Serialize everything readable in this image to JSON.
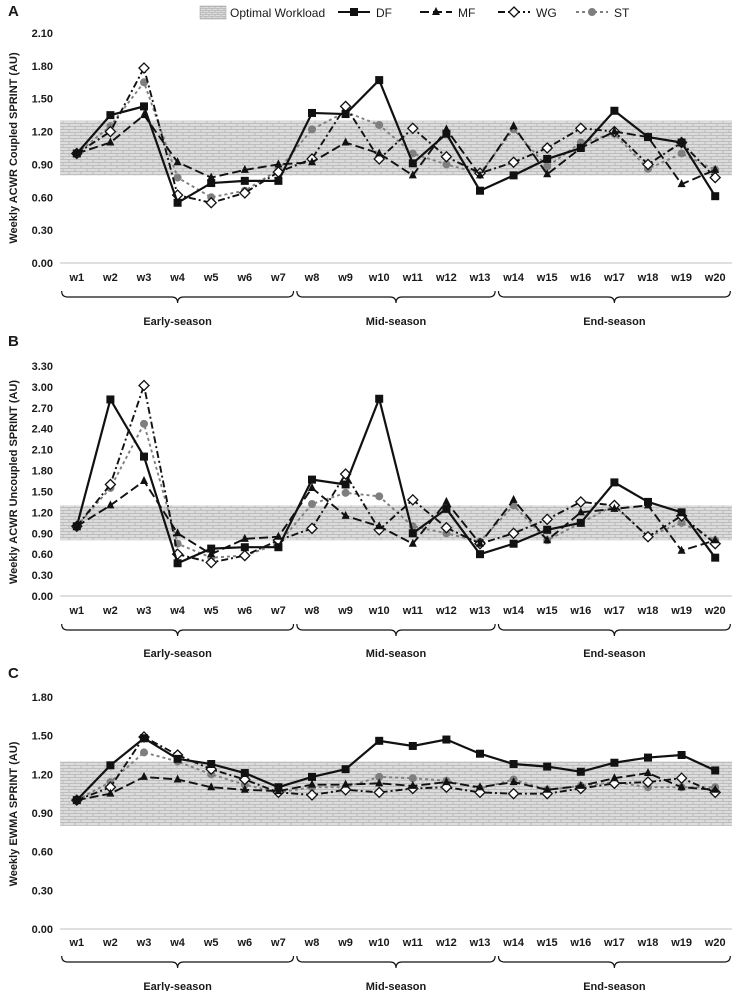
{
  "legend": {
    "optimal_label": "Optimal Workload",
    "series": [
      {
        "key": "DF",
        "label": "DF"
      },
      {
        "key": "MF",
        "label": "MF"
      },
      {
        "key": "WG",
        "label": "WG"
      },
      {
        "key": "ST",
        "label": "ST"
      }
    ]
  },
  "phases": [
    "Early-season",
    "Mid-season",
    "End-season"
  ],
  "styles": {
    "DF": {
      "color": "#111111",
      "dash": "",
      "marker": "square"
    },
    "MF": {
      "color": "#111111",
      "dash": "9 4",
      "marker": "triangle"
    },
    "WG": {
      "color": "#111111",
      "dash": "7 3 2 3",
      "marker": "diamond"
    },
    "ST": {
      "color": "#7f7f7f",
      "dash": "3 3",
      "marker": "circle"
    },
    "band_fill": "#d9d9d9",
    "band_brick": "#bdbdbd"
  },
  "chart_data": [
    {
      "type": "line",
      "panel": "A",
      "ylabel": "Weekly ACWR Coupled SPRINT (AU)",
      "ylim": [
        0,
        2.1
      ],
      "yticks": [
        "0.00",
        "0.30",
        "0.60",
        "0.90",
        "1.20",
        "1.50",
        "1.80",
        "2.10"
      ],
      "optimal_range": [
        0.8,
        1.3
      ],
      "categories": [
        "w1",
        "w2",
        "w3",
        "w4",
        "w5",
        "w6",
        "w7",
        "w8",
        "w9",
        "w10",
        "w11",
        "w12",
        "w13",
        "w14",
        "w15",
        "w16",
        "w17",
        "w18",
        "w19",
        "w20"
      ],
      "series": [
        {
          "name": "DF",
          "values": [
            1.0,
            1.35,
            1.43,
            0.55,
            0.73,
            0.75,
            0.75,
            1.37,
            1.36,
            1.67,
            0.91,
            1.18,
            0.66,
            0.8,
            0.95,
            1.05,
            1.39,
            1.15,
            1.1,
            0.61
          ]
        },
        {
          "name": "MF",
          "values": [
            1.0,
            1.1,
            1.35,
            0.92,
            0.78,
            0.85,
            0.9,
            0.92,
            1.1,
            1.0,
            0.8,
            1.22,
            0.8,
            1.25,
            0.81,
            1.05,
            1.2,
            1.15,
            0.72,
            0.85
          ]
        },
        {
          "name": "WG",
          "values": [
            1.0,
            1.2,
            1.78,
            0.62,
            0.55,
            0.64,
            0.83,
            0.95,
            1.43,
            0.95,
            1.23,
            0.97,
            0.82,
            0.92,
            1.05,
            1.23,
            1.2,
            0.9,
            1.1,
            0.78
          ]
        },
        {
          "name": "ST",
          "values": [
            1.0,
            1.25,
            1.65,
            0.78,
            0.6,
            0.66,
            0.85,
            1.22,
            1.38,
            1.26,
            1.0,
            0.9,
            0.82,
            1.22,
            0.88,
            1.1,
            1.18,
            0.86,
            1.0,
            0.85
          ]
        }
      ]
    },
    {
      "type": "line",
      "panel": "B",
      "ylabel": "Weekly ACWR Uncoupled SPRINT (AU)",
      "ylim": [
        0,
        3.3
      ],
      "yticks": [
        "0.00",
        "0.30",
        "0.60",
        "0.90",
        "1.20",
        "1.50",
        "1.80",
        "2.10",
        "2.40",
        "2.70",
        "3.00",
        "3.30"
      ],
      "optimal_range": [
        0.8,
        1.3
      ],
      "categories": [
        "w1",
        "w2",
        "w3",
        "w4",
        "w5",
        "w6",
        "w7",
        "w8",
        "w9",
        "w10",
        "w11",
        "w12",
        "w13",
        "w14",
        "w15",
        "w16",
        "w17",
        "w18",
        "w19",
        "w20"
      ],
      "series": [
        {
          "name": "DF",
          "values": [
            1.0,
            2.82,
            2.0,
            0.47,
            0.68,
            0.7,
            0.7,
            1.67,
            1.6,
            2.83,
            0.9,
            1.25,
            0.6,
            0.75,
            0.95,
            1.05,
            1.63,
            1.35,
            1.2,
            0.55
          ]
        },
        {
          "name": "MF",
          "values": [
            1.0,
            1.3,
            1.65,
            0.9,
            0.6,
            0.82,
            0.85,
            1.55,
            1.15,
            1.0,
            0.75,
            1.35,
            0.75,
            1.38,
            0.8,
            1.2,
            1.25,
            1.3,
            0.65,
            0.8
          ]
        },
        {
          "name": "WG",
          "values": [
            1.0,
            1.6,
            3.02,
            0.6,
            0.48,
            0.58,
            0.8,
            0.97,
            1.75,
            0.95,
            1.38,
            0.98,
            0.75,
            0.9,
            1.1,
            1.35,
            1.3,
            0.85,
            1.15,
            0.75
          ]
        },
        {
          "name": "ST",
          "values": [
            1.0,
            1.55,
            2.47,
            0.75,
            0.55,
            0.58,
            0.75,
            1.32,
            1.48,
            1.43,
            1.0,
            0.9,
            0.78,
            1.3,
            0.8,
            1.05,
            1.3,
            0.85,
            1.05,
            0.8
          ]
        }
      ]
    },
    {
      "type": "line",
      "panel": "C",
      "ylabel": "Weekly EWMA SPRINT (AU)",
      "ylim": [
        0,
        1.8
      ],
      "yticks": [
        "0.00",
        "0.30",
        "0.60",
        "0.90",
        "1.20",
        "1.50",
        "1.80"
      ],
      "optimal_range": [
        0.8,
        1.3
      ],
      "categories": [
        "w1",
        "w2",
        "w3",
        "w4",
        "w5",
        "w6",
        "w7",
        "w8",
        "w9",
        "w10",
        "w11",
        "w12",
        "w13",
        "w14",
        "w15",
        "w16",
        "w17",
        "w18",
        "w19",
        "w20"
      ],
      "series": [
        {
          "name": "DF",
          "values": [
            1.0,
            1.27,
            1.48,
            1.32,
            1.28,
            1.21,
            1.1,
            1.18,
            1.24,
            1.46,
            1.42,
            1.47,
            1.36,
            1.28,
            1.26,
            1.22,
            1.29,
            1.33,
            1.35,
            1.23
          ]
        },
        {
          "name": "MF",
          "values": [
            1.0,
            1.05,
            1.18,
            1.16,
            1.1,
            1.08,
            1.07,
            1.12,
            1.12,
            1.13,
            1.11,
            1.14,
            1.1,
            1.14,
            1.08,
            1.11,
            1.17,
            1.21,
            1.1,
            1.08
          ]
        },
        {
          "name": "WG",
          "values": [
            1.0,
            1.1,
            1.49,
            1.35,
            1.24,
            1.16,
            1.06,
            1.04,
            1.08,
            1.06,
            1.09,
            1.1,
            1.06,
            1.05,
            1.05,
            1.09,
            1.13,
            1.14,
            1.17,
            1.06
          ]
        },
        {
          "name": "ST",
          "values": [
            1.0,
            1.14,
            1.37,
            1.3,
            1.2,
            1.12,
            1.06,
            1.1,
            1.1,
            1.18,
            1.17,
            1.15,
            1.09,
            1.16,
            1.08,
            1.11,
            1.14,
            1.1,
            1.1,
            1.1
          ]
        }
      ]
    }
  ]
}
